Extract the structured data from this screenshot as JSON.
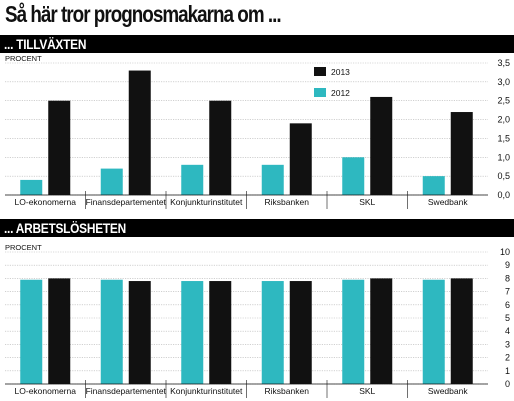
{
  "title": "Så här tror prognosmakarna om ...",
  "sections": [
    {
      "label": "... TILLVÄXTEN"
    },
    {
      "label": "... ARBETSLÖSHETEN"
    }
  ],
  "colors": {
    "s2013": "#111111",
    "s2012": "#2eb8c0"
  },
  "chart_data": [
    {
      "type": "bar",
      "title": "... TILLVÄXTEN",
      "ylabel": "PROCENT",
      "categories": [
        "LO-ekonomerna",
        "Finansdepartementet",
        "Konjunkturinstitutet",
        "Riksbanken",
        "SKL",
        "Swedbank"
      ],
      "series": [
        {
          "name": "2012",
          "color": "#2eb8c0",
          "values": [
            0.4,
            0.7,
            0.8,
            0.8,
            1.0,
            0.5
          ]
        },
        {
          "name": "2013",
          "color": "#111111",
          "values": [
            2.5,
            3.3,
            2.5,
            1.9,
            2.6,
            2.2
          ]
        }
      ],
      "yticks": [
        "0,0",
        "0,5",
        "1,0",
        "1,5",
        "2,0",
        "2,5",
        "3,0",
        "3,5"
      ],
      "ylim": [
        0,
        3.5
      ],
      "legend": [
        "2013",
        "2012"
      ],
      "legend_position": "top-right",
      "grid": true
    },
    {
      "type": "bar",
      "title": "... ARBETSLÖSHETEN",
      "ylabel": "PROCENT",
      "categories": [
        "LO-ekonomerna",
        "Finansdepartementet",
        "Konjunkturinstitutet",
        "Riksbanken",
        "SKL",
        "Swedbank"
      ],
      "series": [
        {
          "name": "2012",
          "color": "#2eb8c0",
          "values": [
            7.9,
            7.9,
            7.8,
            7.8,
            7.9,
            7.9
          ]
        },
        {
          "name": "2013",
          "color": "#111111",
          "values": [
            8.0,
            7.8,
            7.8,
            7.8,
            8.0,
            8.0
          ]
        }
      ],
      "yticks": [
        "0",
        "1",
        "2",
        "3",
        "4",
        "5",
        "6",
        "7",
        "8",
        "9",
        "10"
      ],
      "ylim": [
        0,
        10
      ],
      "grid": true
    }
  ]
}
